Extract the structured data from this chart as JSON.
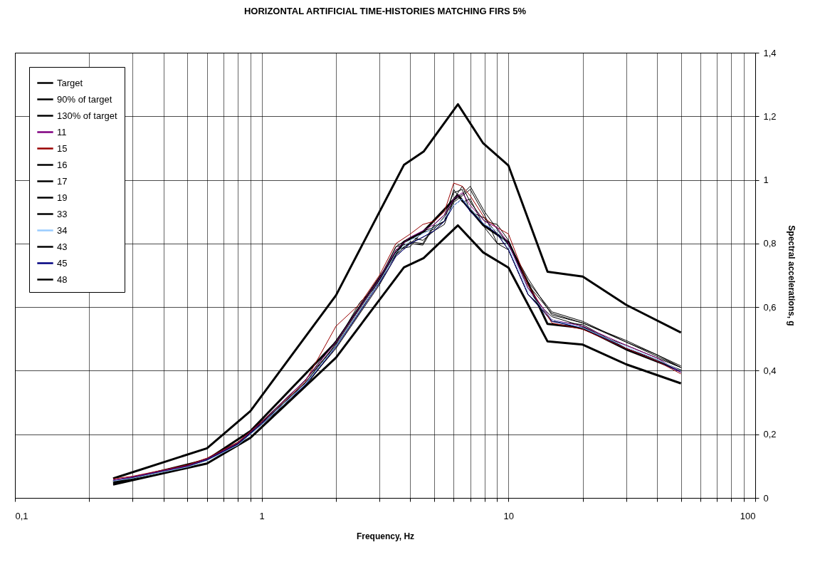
{
  "chart_data": {
    "type": "line",
    "title": "HORIZONTAL ARTIFICIAL TIME-HISTORIES MATCHING FIRS 5%",
    "xlabel": "Frequency, Hz",
    "ylabel": "Spectral accelerations, g",
    "log": "x",
    "grid": true,
    "legend": "top left",
    "line_style": "solid",
    "xlim": [
      0.1,
      100
    ],
    "xticks": [
      {
        "value": 0.1,
        "label": "0,1"
      },
      {
        "value": 0.2,
        "label": null
      },
      {
        "value": 0.3,
        "label": null
      },
      {
        "value": 0.4,
        "label": null
      },
      {
        "value": 0.5,
        "label": null
      },
      {
        "value": 0.6,
        "label": null
      },
      {
        "value": 0.7,
        "label": null
      },
      {
        "value": 0.8,
        "label": null
      },
      {
        "value": 0.9,
        "label": null
      },
      1,
      {
        "value": 2,
        "label": null
      },
      {
        "value": 3,
        "label": null
      },
      {
        "value": 4,
        "label": null
      },
      {
        "value": 5,
        "label": null
      },
      {
        "value": 6,
        "label": null
      },
      {
        "value": 7,
        "label": null
      },
      {
        "value": 8,
        "label": null
      },
      {
        "value": 9,
        "label": null
      },
      10,
      {
        "value": 20,
        "label": null
      },
      {
        "value": 30,
        "label": null
      },
      {
        "value": 40,
        "label": null
      },
      {
        "value": 50,
        "label": null
      },
      {
        "value": 60,
        "label": null
      },
      {
        "value": 70,
        "label": null
      },
      {
        "value": 80,
        "label": null
      },
      {
        "value": 90,
        "label": null
      },
      100
    ],
    "ylim": [
      0,
      1.4
    ],
    "yticks": [
      0,
      {
        "value": 0.2,
        "label": "0,2"
      },
      {
        "value": 0.4,
        "label": "0,4"
      },
      {
        "value": 0.6,
        "label": "0,6"
      },
      {
        "value": 0.8,
        "label": "0,8"
      },
      1,
      {
        "value": 1.2,
        "label": "1,2"
      },
      {
        "value": 1.4,
        "label": "1,4"
      }
    ],
    "x": [
      0.25,
      0.3,
      0.4,
      0.5,
      0.6,
      0.8,
      1,
      1.5,
      2,
      2.5,
      3,
      3.5,
      4,
      4.5,
      5,
      5.5,
      6,
      6.5,
      7,
      8,
      9,
      10,
      12,
      15,
      20,
      30,
      40,
      50
    ],
    "series": [
      {
        "name": "Target",
        "color": "#000000",
        "x": [
          0.25,
          0.6,
          0.9,
          2,
          3.77,
          4.53,
          6.24,
          7.9,
          10,
          14.4,
          20,
          30,
          50
        ],
        "values": [
          0.047,
          0.12,
          0.21,
          0.49,
          0.805,
          0.838,
          0.952,
          0.858,
          0.804,
          0.547,
          0.535,
          0.467,
          0.4
        ]
      },
      {
        "name": "90% of target",
        "color": "#000000",
        "x": [
          0.25,
          0.6,
          0.9,
          2,
          3.77,
          4.53,
          6.24,
          7.9,
          10,
          14.4,
          20,
          30,
          50
        ],
        "values": [
          0.042,
          0.108,
          0.189,
          0.441,
          0.725,
          0.754,
          0.857,
          0.772,
          0.724,
          0.492,
          0.482,
          0.42,
          0.36
        ]
      },
      {
        "name": "130% of target",
        "color": "#000000",
        "x": [
          0.25,
          0.6,
          0.9,
          2,
          3.77,
          4.53,
          6.24,
          7.9,
          10,
          14.4,
          20,
          30,
          50
        ],
        "values": [
          0.061,
          0.156,
          0.273,
          0.637,
          1.047,
          1.089,
          1.238,
          1.115,
          1.045,
          0.711,
          0.696,
          0.607,
          0.52
        ]
      },
      {
        "name": "11",
        "color": "#800080",
        "values": [
          0.056,
          0.066,
          0.086,
          0.101,
          0.122,
          0.172,
          0.238,
          0.37,
          0.49,
          0.6,
          0.69,
          0.78,
          0.82,
          0.84,
          0.86,
          0.89,
          0.94,
          0.96,
          0.92,
          0.87,
          0.85,
          0.8,
          0.66,
          0.56,
          0.54,
          0.48,
          0.44,
          0.395
        ]
      },
      {
        "name": "15",
        "color": "#990000",
        "values": [
          0.06,
          0.068,
          0.088,
          0.104,
          0.125,
          0.175,
          0.24,
          0.365,
          0.54,
          0.61,
          0.7,
          0.8,
          0.83,
          0.86,
          0.87,
          0.9,
          0.99,
          0.98,
          0.95,
          0.88,
          0.85,
          0.83,
          0.67,
          0.55,
          0.53,
          0.47,
          0.43,
          0.39
        ]
      },
      {
        "name": "16",
        "color": "#000000",
        "values": [
          0.054,
          0.064,
          0.084,
          0.099,
          0.119,
          0.168,
          0.232,
          0.355,
          0.47,
          0.58,
          0.67,
          0.76,
          0.8,
          0.82,
          0.84,
          0.87,
          0.92,
          0.94,
          0.91,
          0.86,
          0.83,
          0.78,
          0.64,
          0.57,
          0.54,
          0.47,
          0.43,
          0.4
        ]
      },
      {
        "name": "17",
        "color": "#000000",
        "values": [
          0.053,
          0.065,
          0.085,
          0.102,
          0.121,
          0.171,
          0.236,
          0.362,
          0.485,
          0.615,
          0.675,
          0.775,
          0.8,
          0.795,
          0.855,
          0.87,
          0.97,
          0.93,
          0.94,
          0.85,
          0.8,
          0.8,
          0.69,
          0.575,
          0.55,
          0.495,
          0.45,
          0.415
        ]
      },
      {
        "name": "19",
        "color": "#000000",
        "values": [
          0.052,
          0.063,
          0.083,
          0.098,
          0.118,
          0.166,
          0.23,
          0.35,
          0.475,
          0.585,
          0.685,
          0.765,
          0.805,
          0.8,
          0.86,
          0.89,
          0.96,
          0.97,
          0.9,
          0.88,
          0.83,
          0.8,
          0.66,
          0.555,
          0.545,
          0.47,
          0.435,
          0.4
        ]
      },
      {
        "name": "33",
        "color": "#000000",
        "values": [
          0.055,
          0.066,
          0.087,
          0.1,
          0.12,
          0.17,
          0.237,
          0.37,
          0.48,
          0.59,
          0.68,
          0.78,
          0.79,
          0.84,
          0.85,
          0.87,
          0.93,
          0.95,
          0.97,
          0.89,
          0.8,
          0.78,
          0.64,
          0.56,
          0.53,
          0.48,
          0.44,
          0.41
        ]
      },
      {
        "name": "34",
        "color": "#99ccff",
        "values": [
          0.053,
          0.062,
          0.082,
          0.097,
          0.117,
          0.166,
          0.23,
          0.358,
          0.478,
          0.59,
          0.68,
          0.77,
          0.81,
          0.83,
          0.85,
          0.88,
          0.92,
          0.94,
          0.91,
          0.86,
          0.84,
          0.79,
          0.65,
          0.56,
          0.535,
          0.475,
          0.435,
          0.4
        ]
      },
      {
        "name": "43",
        "color": "#000000",
        "values": [
          0.054,
          0.064,
          0.086,
          0.103,
          0.123,
          0.174,
          0.24,
          0.37,
          0.495,
          0.6,
          0.69,
          0.79,
          0.82,
          0.81,
          0.84,
          0.86,
          0.94,
          0.98,
          0.93,
          0.87,
          0.86,
          0.81,
          0.67,
          0.58,
          0.55,
          0.49,
          0.445,
          0.41
        ]
      },
      {
        "name": "45",
        "color": "#000080",
        "values": [
          0.055,
          0.065,
          0.085,
          0.1,
          0.12,
          0.168,
          0.233,
          0.355,
          0.475,
          0.585,
          0.675,
          0.76,
          0.8,
          0.82,
          0.84,
          0.87,
          0.92,
          0.94,
          0.9,
          0.86,
          0.83,
          0.78,
          0.64,
          0.555,
          0.535,
          0.47,
          0.43,
          0.395
        ]
      },
      {
        "name": "48",
        "color": "#000000",
        "values": [
          0.053,
          0.064,
          0.084,
          0.1,
          0.121,
          0.17,
          0.236,
          0.36,
          0.48,
          0.59,
          0.68,
          0.79,
          0.8,
          0.835,
          0.845,
          0.885,
          0.935,
          0.955,
          0.98,
          0.9,
          0.845,
          0.795,
          0.68,
          0.585,
          0.555,
          0.49,
          0.45,
          0.41
        ]
      }
    ]
  }
}
